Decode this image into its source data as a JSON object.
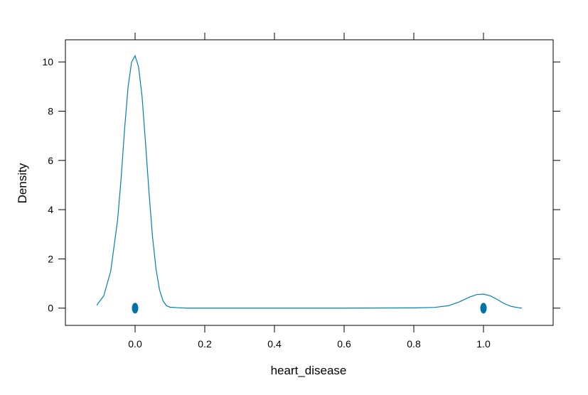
{
  "chart_data": {
    "type": "line",
    "title": "",
    "xlabel": "heart_disease",
    "ylabel": "Density",
    "xlim": [
      -0.2,
      1.2
    ],
    "ylim": [
      -0.7,
      10.9
    ],
    "x_ticks": [
      0.0,
      0.2,
      0.4,
      0.6,
      0.8,
      1.0
    ],
    "x_tick_labels": [
      "0.0",
      "0.2",
      "0.4",
      "0.6",
      "0.8",
      "1.0"
    ],
    "y_ticks": [
      0,
      2,
      4,
      6,
      8,
      10
    ],
    "y_tick_labels": [
      "0",
      "2",
      "4",
      "6",
      "8",
      "10"
    ],
    "grid": false,
    "line_color": "#0080b0",
    "point_color": "#0072a8",
    "density_curve": {
      "x": [
        -0.11,
        -0.09,
        -0.07,
        -0.05,
        -0.04,
        -0.03,
        -0.02,
        -0.01,
        0.0,
        0.01,
        0.02,
        0.03,
        0.04,
        0.05,
        0.06,
        0.07,
        0.08,
        0.09,
        0.1,
        0.12,
        0.15,
        0.2,
        0.4,
        0.6,
        0.8,
        0.86,
        0.9,
        0.93,
        0.96,
        0.98,
        1.0,
        1.02,
        1.04,
        1.06,
        1.08,
        1.1,
        1.11
      ],
      "y": [
        0.12,
        0.5,
        1.5,
        3.6,
        5.3,
        7.3,
        9.0,
        10.0,
        10.25,
        9.8,
        8.6,
        6.7,
        4.7,
        2.9,
        1.6,
        0.75,
        0.3,
        0.1,
        0.04,
        0.02,
        0.0,
        0.0,
        0.0,
        0.0,
        0.01,
        0.03,
        0.1,
        0.25,
        0.45,
        0.55,
        0.57,
        0.5,
        0.35,
        0.18,
        0.07,
        0.02,
        0.0
      ]
    },
    "observed_values": [
      0,
      1
    ]
  }
}
